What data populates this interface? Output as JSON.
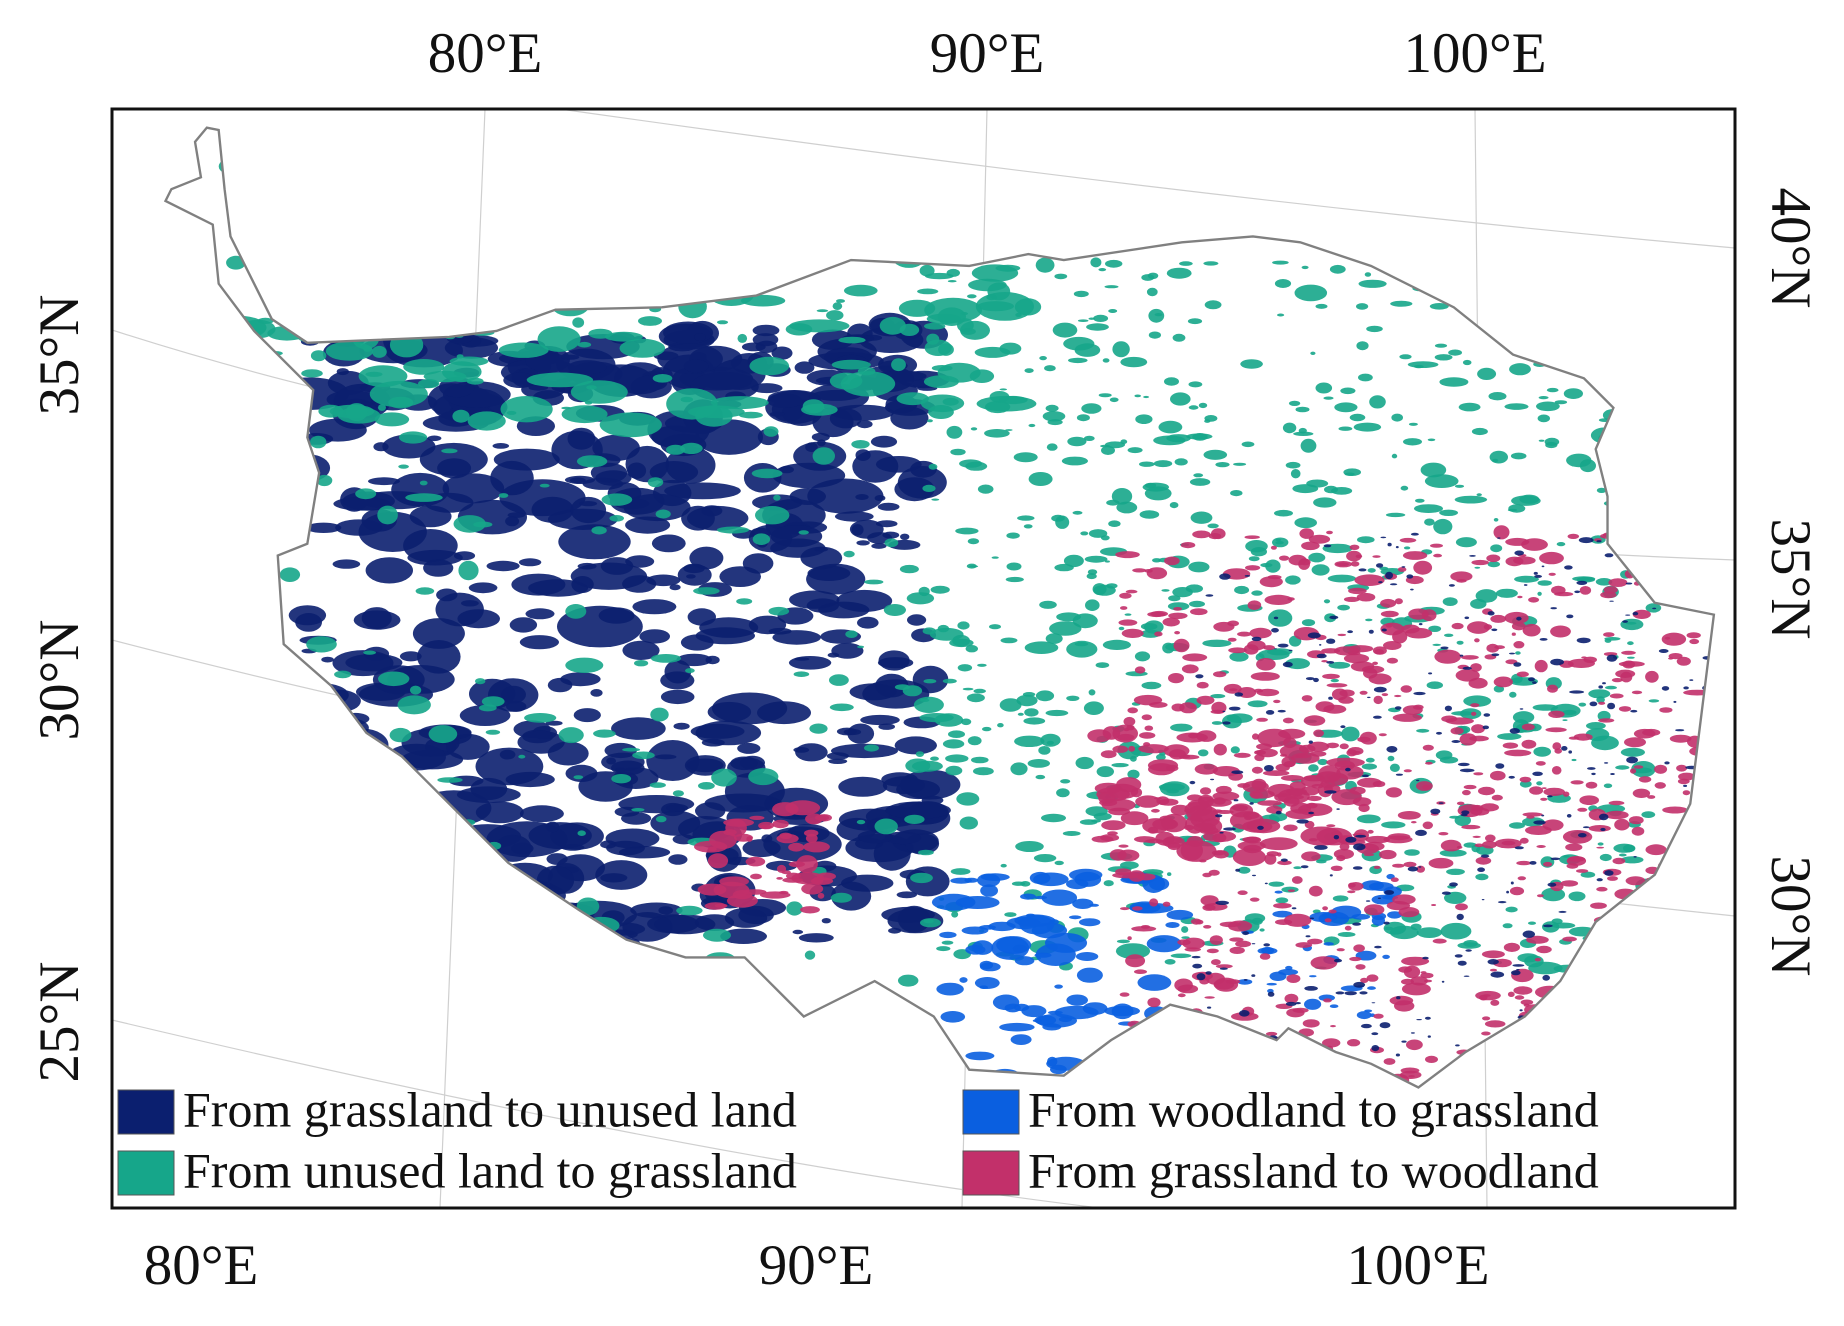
{
  "map": {
    "top_labels": [
      "80°E",
      "90°E",
      "100°E"
    ],
    "bottom_labels": [
      "80°E",
      "90°E",
      "100°E"
    ],
    "left_labels": [
      "35°N",
      "30°N",
      "25°N"
    ],
    "right_labels": [
      "40°N",
      "35°N",
      "30°N"
    ],
    "legend": [
      {
        "label": "From grassland to unused land",
        "color": "#0b1f6f"
      },
      {
        "label": "From unused land to grassland",
        "color": "#16a68a"
      },
      {
        "label": "From woodland to grassland",
        "color": "#0a5fe0"
      },
      {
        "label": "From grassland to woodland",
        "color": "#c2306a"
      }
    ]
  }
}
